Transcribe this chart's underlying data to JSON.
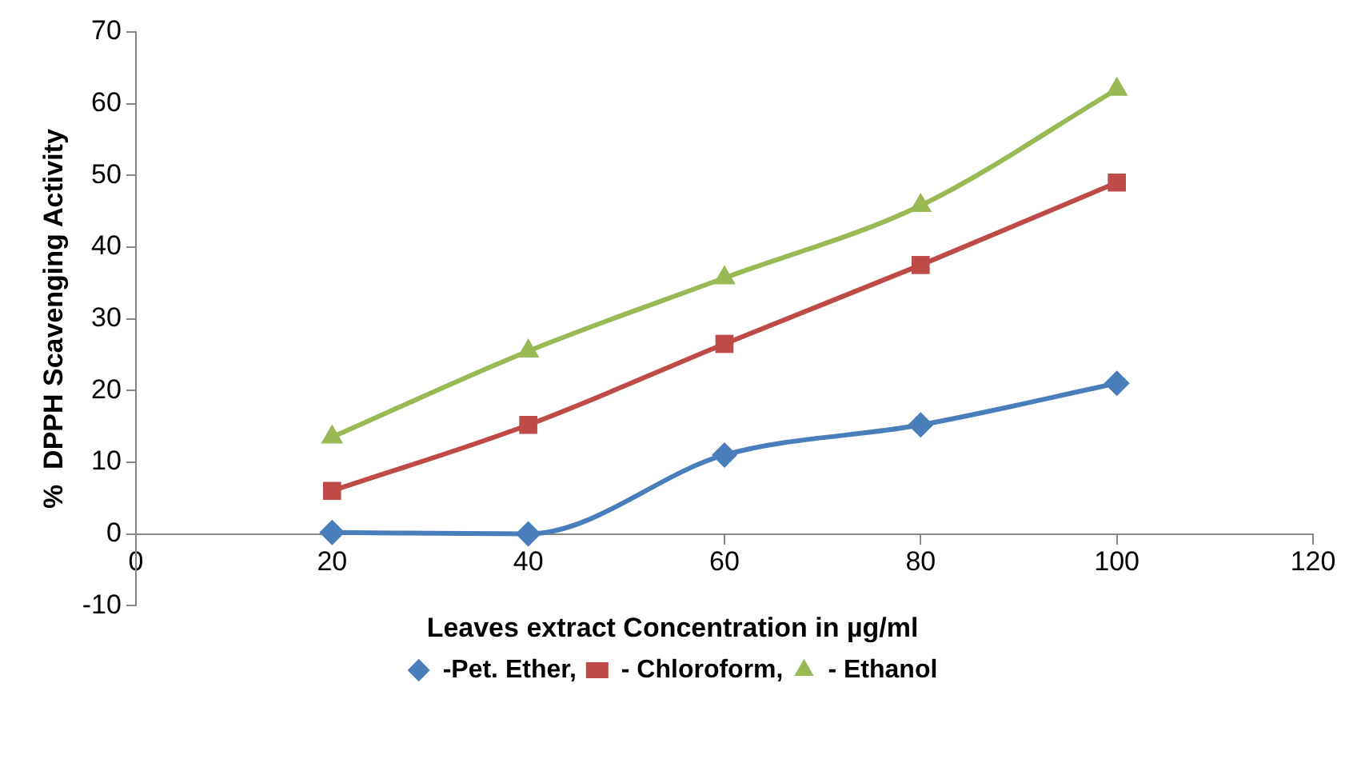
{
  "chart_data": {
    "type": "line",
    "xlabel": "Leaves extract Concentration in µg/ml",
    "ylabel": "%  DPPH Scavenging Activity",
    "x": [
      20,
      40,
      60,
      80,
      100
    ],
    "series": [
      {
        "name": "-Pet. Ether,",
        "color": "#4a7ebb",
        "marker": "diamond",
        "values": [
          0.2,
          0,
          11,
          15.2,
          21
        ]
      },
      {
        "name": "- Chloroform,",
        "color": "#be4b48",
        "marker": "square",
        "values": [
          6,
          15.2,
          26.5,
          37.5,
          49
        ]
      },
      {
        "name": "- Ethanol",
        "color": "#98b954",
        "marker": "triangle",
        "values": [
          13.5,
          25.5,
          35.7,
          45.8,
          62
        ]
      }
    ],
    "xlim": [
      0,
      120
    ],
    "xticks": [
      0,
      20,
      40,
      60,
      80,
      100,
      120
    ],
    "ylim": [
      -10,
      70
    ],
    "yticks": [
      -10,
      0,
      10,
      20,
      30,
      40,
      50,
      60,
      70
    ],
    "grid": false,
    "legend": "bottom",
    "line_style": "solid"
  }
}
